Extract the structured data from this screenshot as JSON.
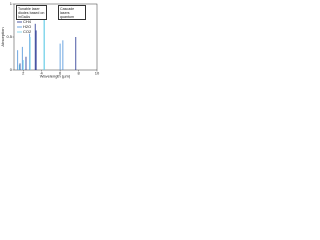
{
  "chart_data": {
    "type": "stem",
    "xlabel": "Wavelength (µm)",
    "ylabel": "Absorption",
    "annotations": [
      "Tunable laser diodes based on InGaAs",
      "Cascade lasers quantum"
    ],
    "xlim": [
      1,
      10
    ],
    "xticks": [
      2,
      4,
      6,
      8,
      10
    ],
    "ylim": [
      0,
      1
    ],
    "yticks": [
      0,
      0.5,
      1
    ],
    "legend": "left",
    "series": [
      {
        "name": "CH4",
        "color": "#1f2f8f",
        "x": [
          1.65,
          2.3,
          3.3,
          3.4,
          7.7
        ],
        "values": [
          0.1,
          0.2,
          0.7,
          0.6,
          0.5
        ]
      },
      {
        "name": "H2O",
        "color": "#4a90d9",
        "x": [
          1.4,
          1.9,
          2.7,
          6.0,
          6.3
        ],
        "values": [
          0.3,
          0.35,
          0.55,
          0.4,
          0.45
        ]
      },
      {
        "name": "CO2",
        "color": "#6fd0e8",
        "x": [
          1.57,
          2.0,
          2.75,
          4.25,
          4.3
        ],
        "values": [
          0.08,
          0.15,
          0.5,
          0.9,
          0.95
        ]
      }
    ]
  }
}
